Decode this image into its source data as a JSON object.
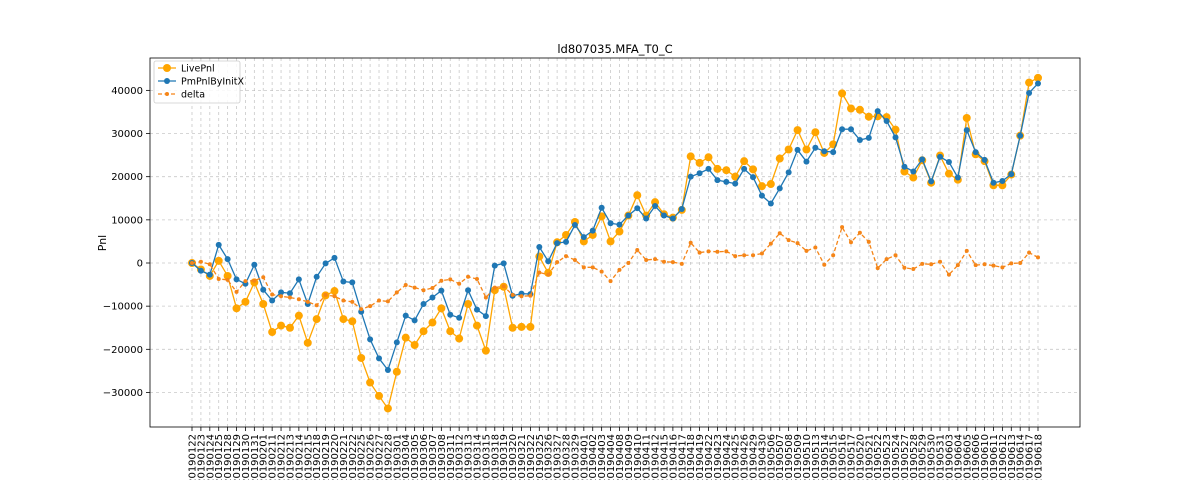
{
  "chart_data": {
    "type": "line",
    "title": "ld807035.MFA_T0_C",
    "xlabel": "",
    "ylabel": "Pnl",
    "ylim": [
      -38000,
      47500
    ],
    "yticks": [
      -30000,
      -20000,
      -10000,
      0,
      10000,
      20000,
      30000,
      40000
    ],
    "grid": true,
    "legend_position": "top-left",
    "categories": [
      "20190122",
      "20190123",
      "20190124",
      "20190125",
      "20190128",
      "20190129",
      "20190130",
      "20190131",
      "20190201",
      "20190211",
      "20190212",
      "20190213",
      "20190214",
      "20190215",
      "20190218",
      "20190219",
      "20190220",
      "20190221",
      "20190222",
      "20190225",
      "20190226",
      "20190227",
      "20190228",
      "20190301",
      "20190304",
      "20190305",
      "20190306",
      "20190307",
      "20190308",
      "20190311",
      "20190312",
      "20190313",
      "20190314",
      "20190315",
      "20190318",
      "20190319",
      "20190320",
      "20190321",
      "20190322",
      "20190325",
      "20190326",
      "20190327",
      "20190328",
      "20190329",
      "20190401",
      "20190402",
      "20190403",
      "20190404",
      "20190408",
      "20190409",
      "20190410",
      "20190411",
      "20190412",
      "20190415",
      "20190416",
      "20190417",
      "20190418",
      "20190419",
      "20190422",
      "20190423",
      "20190424",
      "20190425",
      "20190426",
      "20190429",
      "20190430",
      "20190506",
      "20190507",
      "20190508",
      "20190509",
      "20190510",
      "20190513",
      "20190514",
      "20190515",
      "20190516",
      "20190517",
      "20190520",
      "20190521",
      "20190522",
      "20190523",
      "20190524",
      "20190527",
      "20190528",
      "20190529",
      "20190530",
      "20190531",
      "20190603",
      "20190604",
      "20190605",
      "20190606",
      "20190610",
      "20190611",
      "20190612",
      "20190613",
      "20190614",
      "20190617",
      "20190618"
    ],
    "series": [
      {
        "name": "LivePnl",
        "color": "#ffa500",
        "marker": "circle-large",
        "line_style": "solid",
        "values": [
          0,
          -1500,
          -3000,
          500,
          -3000,
          -10500,
          -9000,
          -4500,
          -9500,
          -16000,
          -14500,
          -15000,
          -12200,
          -18500,
          -13000,
          -7500,
          -6500,
          -13000,
          -13500,
          -22000,
          -27700,
          -30800,
          -33700,
          -25200,
          -17300,
          -19000,
          -15800,
          -13800,
          -10500,
          -15800,
          -17500,
          -9500,
          -14500,
          -20300,
          -6300,
          -5500,
          -15000,
          -14800,
          -14800,
          1500,
          -2300,
          4800,
          6500,
          9500,
          5000,
          6500,
          10800,
          5000,
          7300,
          11000,
          15700,
          11000,
          14100,
          11300,
          10500,
          12300,
          24700,
          23200,
          24500,
          21800,
          21500,
          20000,
          23600,
          21700,
          17800,
          18300,
          24200,
          26300,
          30800,
          26300,
          30300,
          25500,
          27500,
          39300,
          35800,
          35500,
          33900,
          34000,
          33800,
          30900,
          21200,
          19800,
          23800,
          18600,
          24900,
          20700,
          19300,
          33600,
          25200,
          23600,
          18000,
          18000,
          20500,
          29500,
          41800,
          42900
        ]
      },
      {
        "name": "PmPnlByInitX",
        "color": "#1f77b4",
        "marker": "circle-small",
        "line_style": "solid",
        "values": [
          0,
          -1800,
          -2700,
          4200,
          900,
          -3800,
          -4800,
          -400,
          -6200,
          -8700,
          -6800,
          -7000,
          -3800,
          -9500,
          -3200,
          -100,
          1200,
          -4300,
          -4500,
          -11300,
          -17700,
          -22100,
          -24800,
          -18400,
          -12200,
          -13300,
          -9500,
          -8000,
          -6400,
          -12000,
          -12700,
          -6300,
          -10800,
          -12300,
          -600,
          -100,
          -7600,
          -7100,
          -7200,
          3700,
          400,
          4600,
          4900,
          8800,
          6000,
          7500,
          12800,
          9200,
          8900,
          11000,
          12700,
          10300,
          13200,
          11000,
          10300,
          12500,
          20000,
          20800,
          21800,
          19200,
          18800,
          18400,
          21800,
          19900,
          15600,
          13800,
          17300,
          21000,
          26200,
          23500,
          26700,
          25900,
          25700,
          31000,
          31000,
          28500,
          29000,
          35200,
          32900,
          29100,
          22300,
          21200,
          24000,
          18900,
          24600,
          23400,
          19800,
          30800,
          25700,
          23900,
          18600,
          19000,
          20600,
          29500,
          39400,
          41600
        ]
      },
      {
        "name": "delta",
        "color": "#f58518",
        "marker": "circle-tiny",
        "line_style": "dashed",
        "values": [
          0,
          300,
          -300,
          -3700,
          -3900,
          -6700,
          -4200,
          -4100,
          -3300,
          -7300,
          -7700,
          -8000,
          -8400,
          -9000,
          -9800,
          -7400,
          -7700,
          -8700,
          -9000,
          -10700,
          -10000,
          -8700,
          -8900,
          -6800,
          -5100,
          -5700,
          -6300,
          -5800,
          -4100,
          -3800,
          -4800,
          -3200,
          -3700,
          -8000,
          -5700,
          -5400,
          -7400,
          -7700,
          -7600,
          -2200,
          -2700,
          200,
          1600,
          700,
          -1000,
          -1000,
          -2000,
          -4200,
          -1600,
          0,
          3000,
          700,
          900,
          300,
          200,
          -200,
          4700,
          2400,
          2700,
          2600,
          2700,
          1600,
          1800,
          1800,
          2200,
          4500,
          6900,
          5300,
          4600,
          2800,
          3600,
          -400,
          1800,
          8300,
          4800,
          7000,
          4900,
          -1200,
          900,
          1800,
          -1100,
          -1400,
          -200,
          -300,
          300,
          -2700,
          -500,
          2800,
          -500,
          -300,
          -600,
          -1000,
          -100,
          0,
          2400,
          1300
        ]
      }
    ]
  }
}
